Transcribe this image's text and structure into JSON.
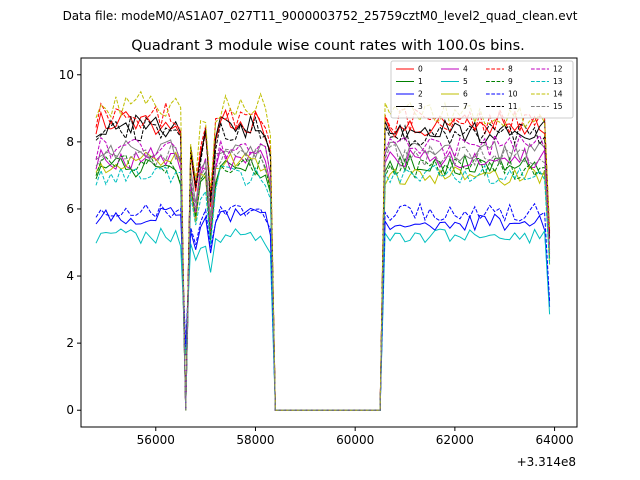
{
  "figure": {
    "suptitle": "Data file: modeM0/AS1A07_027T11_9000003752_25759cztM0_level2_quad_clean.evt"
  },
  "chart_data": {
    "type": "line",
    "title": "Quadrant 3 module wise count rates with 100.0s bins.",
    "xlabel": "",
    "ylabel": "",
    "x_offset_text": "+3.314e8",
    "xlim": [
      54500,
      64450
    ],
    "ylim": [
      -0.5,
      10.5
    ],
    "x_ticks": [
      56000,
      58000,
      60000,
      62000,
      64000
    ],
    "x_tick_labels": [
      "56000",
      "58000",
      "60000",
      "62000",
      "64000"
    ],
    "y_ticks": [
      0,
      2,
      4,
      6,
      8,
      10
    ],
    "y_tick_labels": [
      "0",
      "2",
      "4",
      "6",
      "8",
      "10"
    ],
    "grid": false,
    "legend_position": "top-right",
    "legend_columns": 4,
    "x_start": 54800,
    "bin": 100,
    "gap": {
      "start": 58400,
      "end": 60500
    },
    "series": [
      {
        "name": "0",
        "color": "#ff0000",
        "style": "solid",
        "pre": 8.6,
        "post": 8.5,
        "dip": 0.8
      },
      {
        "name": "1",
        "color": "#008000",
        "style": "solid",
        "pre": 7.2,
        "post": 7.3,
        "dip": 0.8
      },
      {
        "name": "2",
        "color": "#0000ff",
        "style": "solid",
        "pre": 5.8,
        "post": 5.6,
        "dip": 0.55
      },
      {
        "name": "3",
        "color": "#000000",
        "style": "solid",
        "pre": 8.5,
        "post": 8.3,
        "dip": 0.8
      },
      {
        "name": "4",
        "color": "#bf00bf",
        "style": "solid",
        "pre": 7.5,
        "post": 7.5,
        "dip": 0.8
      },
      {
        "name": "5",
        "color": "#00bfbf",
        "style": "solid",
        "pre": 5.2,
        "post": 5.2,
        "dip": 0.55
      },
      {
        "name": "6",
        "color": "#bfbf00",
        "style": "solid",
        "pre": 7.4,
        "post": 7.0,
        "dip": 0.8
      },
      {
        "name": "7",
        "color": "#808080",
        "style": "solid",
        "pre": 7.8,
        "post": 7.7,
        "dip": 0.8
      },
      {
        "name": "8",
        "color": "#ff0000",
        "style": "dashed",
        "pre": 8.8,
        "post": 8.6,
        "dip": 0.8
      },
      {
        "name": "9",
        "color": "#008000",
        "style": "dashed",
        "pre": 7.3,
        "post": 7.2,
        "dip": 0.8
      },
      {
        "name": "10",
        "color": "#0000ff",
        "style": "dashed",
        "pre": 6.0,
        "post": 5.9,
        "dip": 0.55
      },
      {
        "name": "11",
        "color": "#000000",
        "style": "dashed",
        "pre": 8.4,
        "post": 8.2,
        "dip": 0.8
      },
      {
        "name": "12",
        "color": "#bf00bf",
        "style": "dashed",
        "pre": 7.8,
        "post": 7.9,
        "dip": 0.8
      },
      {
        "name": "13",
        "color": "#00bfbf",
        "style": "dashed",
        "pre": 7.0,
        "post": 7.0,
        "dip": 0.8
      },
      {
        "name": "14",
        "color": "#bfbf00",
        "style": "dashed",
        "pre": 9.1,
        "post": 8.8,
        "dip": 0.8
      },
      {
        "name": "15",
        "color": "#808080",
        "style": "dashed",
        "pre": 7.6,
        "post": 7.6,
        "dip": 0.8
      }
    ]
  }
}
